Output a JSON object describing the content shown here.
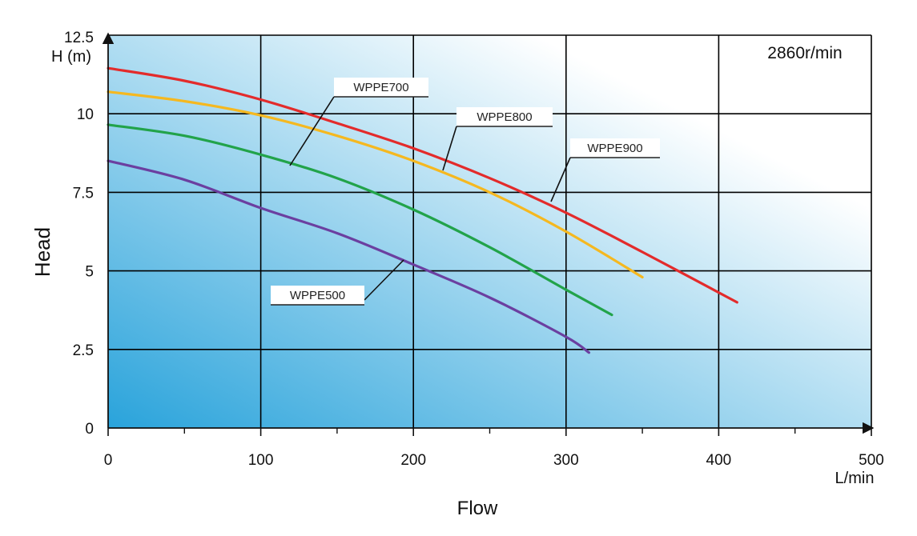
{
  "chart_data": {
    "type": "line",
    "title": "",
    "speed_label": "2860r/min",
    "xlabel": "Flow",
    "x_unit": "L/min",
    "ylabel": "Head",
    "y_unit": "H (m)",
    "xlim": [
      0,
      500
    ],
    "ylim": [
      0,
      12.5
    ],
    "x_ticks": [
      "0",
      "100",
      "200",
      "300",
      "400",
      "500"
    ],
    "y_ticks": [
      "0",
      "2.5",
      "5",
      "7.5",
      "10",
      "12.5"
    ],
    "x_tick_values": [
      0,
      100,
      200,
      300,
      400,
      500
    ],
    "y_tick_values": [
      0,
      2.5,
      5,
      7.5,
      10,
      12.5
    ],
    "x_minor_values": [
      50,
      150,
      250,
      350,
      450
    ],
    "grid": true,
    "series": [
      {
        "name": "WPPE900",
        "color": "#e32b2b",
        "x": [
          0,
          50,
          100,
          150,
          200,
          250,
          300,
          350,
          412
        ],
        "y": [
          11.45,
          11.05,
          10.45,
          9.7,
          8.9,
          7.95,
          6.85,
          5.6,
          4.0
        ]
      },
      {
        "name": "WPPE800",
        "color": "#f5b820",
        "x": [
          0,
          50,
          100,
          150,
          200,
          250,
          300,
          350
        ],
        "y": [
          10.7,
          10.4,
          9.95,
          9.3,
          8.5,
          7.5,
          6.25,
          4.8
        ]
      },
      {
        "name": "WPPE700",
        "color": "#22a34a",
        "x": [
          0,
          50,
          100,
          150,
          200,
          250,
          300,
          330
        ],
        "y": [
          9.65,
          9.3,
          8.7,
          7.95,
          6.95,
          5.75,
          4.4,
          3.6
        ]
      },
      {
        "name": "WPPE500",
        "color": "#6b3fa0",
        "x": [
          0,
          50,
          100,
          150,
          200,
          250,
          300,
          315
        ],
        "y": [
          8.5,
          7.9,
          7.0,
          6.2,
          5.2,
          4.15,
          2.9,
          2.4
        ]
      }
    ],
    "callouts": [
      {
        "label": "WPPE700",
        "series": "WPPE700",
        "line_color": "#111111"
      },
      {
        "label": "WPPE800",
        "series": "WPPE800",
        "line_color": "#111111"
      },
      {
        "label": "WPPE900",
        "series": "WPPE900",
        "line_color": "#111111"
      },
      {
        "label": "WPPE500",
        "series": "WPPE500",
        "line_color": "#111111"
      }
    ],
    "background_gradient": {
      "dark": "#29a3db",
      "light": "#ffffff"
    }
  }
}
